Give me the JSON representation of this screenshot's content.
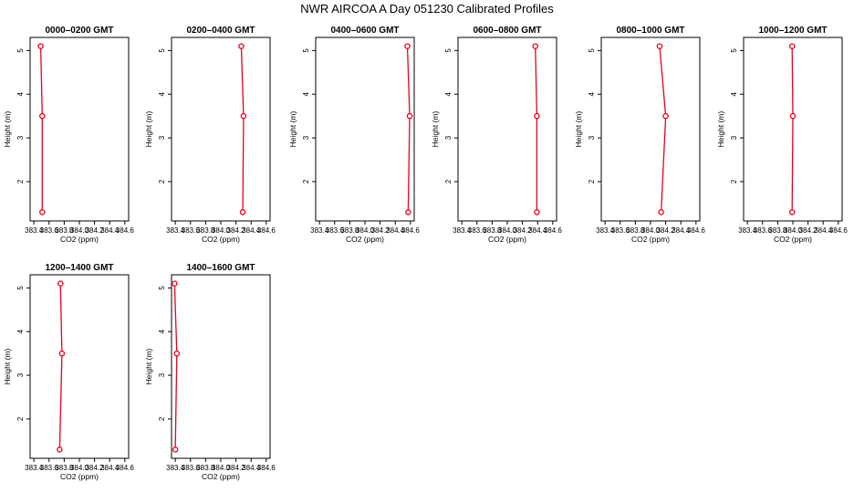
{
  "figure_title": "NWR AIRCOA A  Day 051230  Calibrated Profiles",
  "colors": {
    "series": "#e8001c",
    "axis": "#000000"
  },
  "chart_data": [
    {
      "type": "line",
      "title": "0000–0200 GMT",
      "xlabel": "CO2 (ppm)",
      "ylabel": "Height (m)",
      "xlim": [
        383.35,
        384.65
      ],
      "ylim": [
        1.1,
        5.3
      ],
      "xticks": [
        "383.4",
        "383.6",
        "383.8",
        "384.0",
        "384.2",
        "384.4",
        "384.6"
      ],
      "yticks": [
        "2",
        "3",
        "4",
        "5"
      ],
      "x": [
        383.49,
        383.51,
        383.51
      ],
      "y": [
        5.1,
        3.5,
        1.3
      ]
    },
    {
      "type": "line",
      "title": "0200–0400 GMT",
      "xlabel": "CO2 (ppm)",
      "ylabel": "Height (m)",
      "xlim": [
        383.35,
        384.65
      ],
      "ylim": [
        1.1,
        5.3
      ],
      "xticks": [
        "383.4",
        "383.6",
        "383.8",
        "384.0",
        "384.2",
        "384.4",
        "384.6"
      ],
      "yticks": [
        "2",
        "3",
        "4",
        "5"
      ],
      "x": [
        384.27,
        384.3,
        384.29
      ],
      "y": [
        5.1,
        3.5,
        1.3
      ]
    },
    {
      "type": "line",
      "title": "0400–0600 GMT",
      "xlabel": "CO2 (ppm)",
      "ylabel": "Height (m)",
      "xlim": [
        383.35,
        384.65
      ],
      "ylim": [
        1.1,
        5.3
      ],
      "xticks": [
        "383.4",
        "383.6",
        "383.8",
        "384.0",
        "384.2",
        "384.4",
        "384.6"
      ],
      "yticks": [
        "2",
        "3",
        "4",
        "5"
      ],
      "x": [
        384.56,
        384.59,
        384.57
      ],
      "y": [
        5.1,
        3.5,
        1.3
      ]
    },
    {
      "type": "line",
      "title": "0600–0800 GMT",
      "xlabel": "CO2 (ppm)",
      "ylabel": "Height (m)",
      "xlim": [
        383.35,
        384.65
      ],
      "ylim": [
        1.1,
        5.3
      ],
      "xticks": [
        "383.4",
        "383.6",
        "383.8",
        "384.0",
        "384.2",
        "384.4",
        "384.6"
      ],
      "yticks": [
        "2",
        "3",
        "4",
        "5"
      ],
      "x": [
        384.37,
        384.39,
        384.39
      ],
      "y": [
        5.1,
        3.5,
        1.3
      ]
    },
    {
      "type": "line",
      "title": "0800–1000 GMT",
      "xlabel": "CO2 (ppm)",
      "ylabel": "Height (m)",
      "xlim": [
        383.35,
        384.65
      ],
      "ylim": [
        1.1,
        5.3
      ],
      "xticks": [
        "383.4",
        "383.6",
        "383.8",
        "384.0",
        "384.2",
        "384.4",
        "384.6"
      ],
      "yticks": [
        "2",
        "3",
        "4",
        "5"
      ],
      "x": [
        384.12,
        384.2,
        384.14
      ],
      "y": [
        5.1,
        3.5,
        1.3
      ]
    },
    {
      "type": "line",
      "title": "1000–1200 GMT",
      "xlabel": "CO2 (ppm)",
      "ylabel": "Height (m)",
      "xlim": [
        383.35,
        384.65
      ],
      "ylim": [
        1.1,
        5.3
      ],
      "xticks": [
        "383.4",
        "383.6",
        "383.8",
        "384.0",
        "384.2",
        "384.4",
        "384.6"
      ],
      "yticks": [
        "2",
        "3",
        "4",
        "5"
      ],
      "x": [
        383.99,
        384.0,
        383.99
      ],
      "y": [
        5.1,
        3.5,
        1.3
      ]
    },
    {
      "type": "line",
      "title": "1200–1400 GMT",
      "xlabel": "CO2 (ppm)",
      "ylabel": "Height (m)",
      "xlim": [
        383.35,
        384.65
      ],
      "ylim": [
        1.1,
        5.3
      ],
      "xticks": [
        "383.4",
        "383.6",
        "383.8",
        "384.0",
        "384.2",
        "384.4",
        "384.6"
      ],
      "yticks": [
        "2",
        "3",
        "4",
        "5"
      ],
      "x": [
        383.75,
        383.77,
        383.74
      ],
      "y": [
        5.1,
        3.5,
        1.3
      ]
    },
    {
      "type": "line",
      "title": "1400–1600 GMT",
      "xlabel": "CO2 (ppm)",
      "ylabel": "Height (m)",
      "xlim": [
        383.35,
        384.65
      ],
      "ylim": [
        1.1,
        5.3
      ],
      "xticks": [
        "383.4",
        "383.6",
        "383.8",
        "384.0",
        "384.2",
        "384.4",
        "384.6"
      ],
      "yticks": [
        "2",
        "3",
        "4",
        "5"
      ],
      "x": [
        383.39,
        383.42,
        383.4
      ],
      "y": [
        5.1,
        3.5,
        1.3
      ]
    }
  ]
}
